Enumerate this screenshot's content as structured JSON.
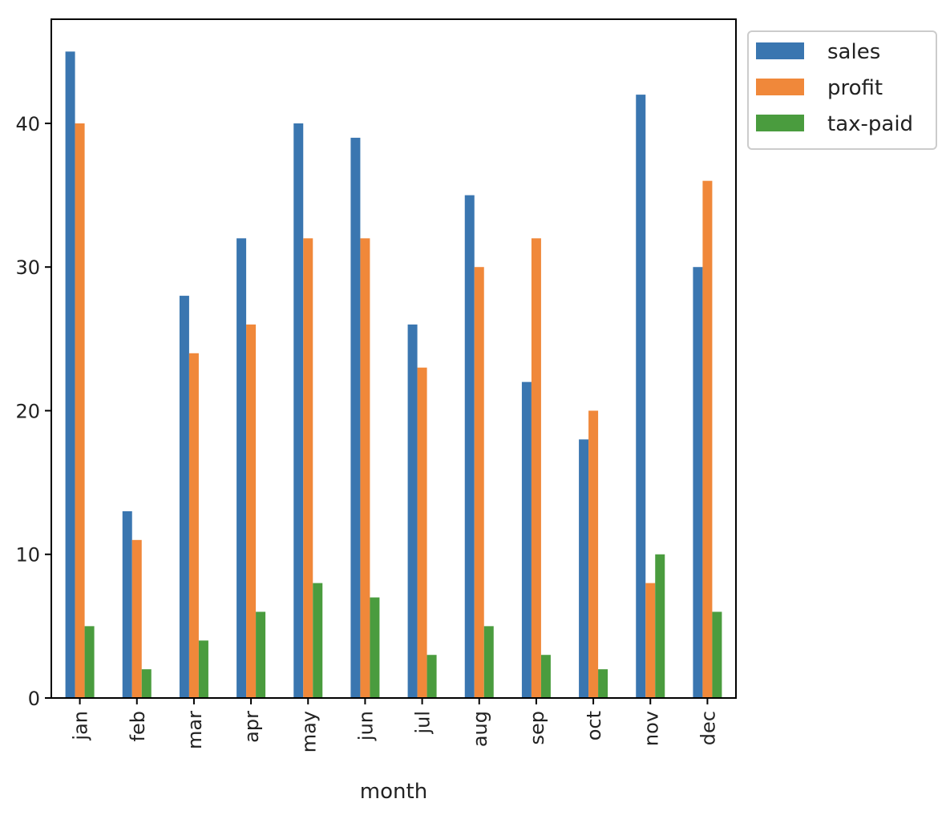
{
  "colors": {
    "sales": "#3a76b0",
    "profit": "#f0883a",
    "tax-paid": "#4a9c3e",
    "axis": "#000000",
    "legend_border": "#cccccc"
  },
  "chart_data": {
    "type": "bar",
    "xlabel": "month",
    "ylabel": "",
    "ylim": [
      0,
      47.25
    ],
    "yticks": [
      0,
      10,
      20,
      30,
      40
    ],
    "grid": false,
    "legend_position": "upper-right-outside",
    "categories": [
      "jan",
      "feb",
      "mar",
      "apr",
      "may",
      "jun",
      "jul",
      "aug",
      "sep",
      "oct",
      "nov",
      "dec"
    ],
    "series": [
      {
        "name": "sales",
        "values": [
          45,
          13,
          28,
          32,
          40,
          39,
          26,
          35,
          22,
          18,
          42,
          30
        ]
      },
      {
        "name": "profit",
        "values": [
          40,
          11,
          24,
          26,
          32,
          32,
          23,
          30,
          32,
          20,
          8,
          36
        ]
      },
      {
        "name": "tax-paid",
        "values": [
          5,
          2,
          4,
          6,
          8,
          7,
          3,
          5,
          3,
          2,
          10,
          6
        ]
      }
    ]
  }
}
